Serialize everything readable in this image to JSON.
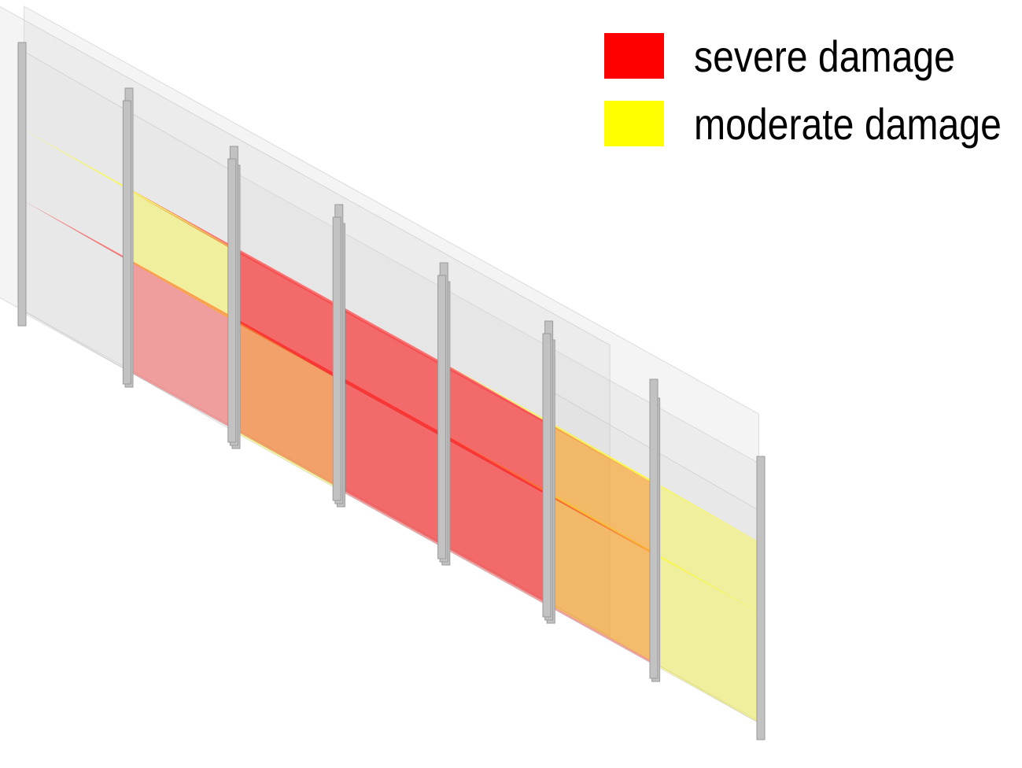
{
  "legend": {
    "items": [
      {
        "label": "severe damage",
        "color": "#ff0000"
      },
      {
        "label": "moderate damage",
        "color": "#ffff00"
      }
    ]
  },
  "colors": {
    "severe": "#ff0000",
    "moderate": "#ffff00",
    "column": "#c2c2c2",
    "wall": "#d6d6d6"
  },
  "structure": {
    "description_visible": false
  }
}
